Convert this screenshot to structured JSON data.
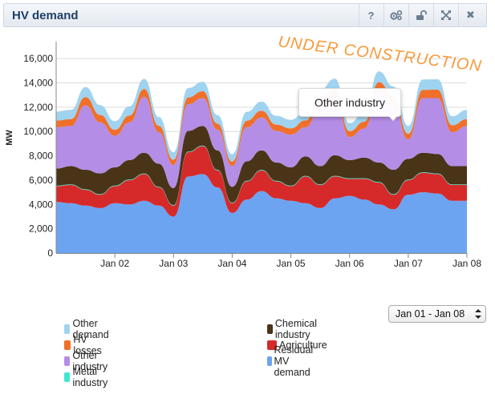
{
  "panel": {
    "title": "HV demand",
    "buttons": [
      {
        "id": "help",
        "icon": "help-icon",
        "glyph": "?"
      },
      {
        "id": "settings",
        "icon": "gears-icon",
        "glyph": ""
      },
      {
        "id": "unlock",
        "icon": "unlock-icon",
        "glyph": ""
      },
      {
        "id": "expand",
        "icon": "expand-icon",
        "glyph": ""
      },
      {
        "id": "close",
        "icon": "close-icon",
        "glyph": "✖"
      }
    ]
  },
  "watermark": "UNDER CONSTRUCTION",
  "tooltip": "Other industry",
  "date_range": {
    "selected": "Jan 01 - Jan 08"
  },
  "colors": {
    "residual_mv": "#6ca4f2",
    "agriculture": "#d62a2a",
    "chemical": "#4a3418",
    "other_industry": "#b48ee6",
    "hv_losses": "#f0702a",
    "other_demand": "#9fd3ef",
    "metal": "#3fe7cf",
    "watermark": "#f79a3c"
  },
  "legend": {
    "items": [
      {
        "label": "Other demand",
        "color": "#9fd3ef"
      },
      {
        "label": "Chemical industry",
        "color": "#4a3418"
      },
      {
        "label": "HV losses",
        "color": "#f0702a"
      },
      {
        "label": "Agriculture",
        "color": "#d62a2a"
      },
      {
        "label": "Other industry",
        "color": "#b48ee6"
      },
      {
        "label": "Residual MV demand",
        "color": "#6ca4f2"
      },
      {
        "label": "Metal industry",
        "color": "#3fe7cf"
      }
    ]
  },
  "chart_data": {
    "type": "area",
    "stacked": true,
    "ylabel": "MW",
    "ylim": [
      0,
      17000
    ],
    "yticks": [
      "0",
      "2,000",
      "4,000",
      "6,000",
      "8,000",
      "10,000",
      "12,000",
      "14,000",
      "16,000"
    ],
    "ytick_values": [
      0,
      2000,
      4000,
      6000,
      8000,
      10000,
      12000,
      14000,
      16000
    ],
    "xticks": [
      "Jan 02",
      "Jan 03",
      "Jan 04",
      "Jan 05",
      "Jan 06",
      "Jan 07",
      "Jan 08"
    ],
    "x_days": [
      0,
      0.25,
      0.5,
      0.75,
      1,
      1.25,
      1.5,
      1.75,
      2,
      2.25,
      2.5,
      2.75,
      3,
      3.25,
      3.5,
      3.75,
      4,
      4.25,
      4.5,
      4.75,
      5,
      5.25,
      5.5,
      5.75,
      6,
      6.25,
      6.5,
      6.75,
      7
    ],
    "series": [
      {
        "name": "Residual MV demand",
        "values": [
          4200,
          4100,
          3900,
          3700,
          4100,
          4000,
          4300,
          3900,
          3000,
          6300,
          6500,
          5400,
          3300,
          4400,
          5100,
          4500,
          4300,
          4100,
          3700,
          4500,
          4700,
          4400,
          4000,
          3600,
          4800,
          5000,
          4900,
          4300,
          4300
        ]
      },
      {
        "name": "Agriculture",
        "values": [
          1300,
          1500,
          1300,
          1100,
          1400,
          2000,
          2200,
          1500,
          900,
          2000,
          2300,
          1400,
          800,
          1500,
          1700,
          1400,
          1200,
          2200,
          1900,
          1800,
          1400,
          1700,
          1800,
          1200,
          1200,
          1600,
          1600,
          1300,
          1300
        ]
      },
      {
        "name": "Metal industry",
        "values": [
          50,
          50,
          50,
          50,
          50,
          50,
          50,
          50,
          50,
          50,
          50,
          50,
          50,
          50,
          50,
          50,
          50,
          50,
          50,
          50,
          50,
          50,
          50,
          50,
          50,
          50,
          50,
          50,
          50
        ]
      },
      {
        "name": "Chemical industry",
        "values": [
          1400,
          1500,
          1600,
          1700,
          1500,
          1600,
          1700,
          1900,
          1400,
          1700,
          1600,
          1600,
          1300,
          1600,
          1600,
          1500,
          1500,
          1600,
          1500,
          1700,
          1500,
          1700,
          1600,
          2000,
          1700,
          1600,
          1600,
          1500,
          1500
        ]
      },
      {
        "name": "Other industry",
        "values": [
          3400,
          3300,
          5300,
          4200,
          2600,
          3100,
          4600,
          2600,
          1900,
          2200,
          2300,
          1700,
          1700,
          2800,
          2700,
          2600,
          2700,
          2400,
          4800,
          4800,
          1900,
          2400,
          5900,
          5300,
          1600,
          4500,
          4600,
          2800,
          3300
        ]
      },
      {
        "name": "HV losses",
        "values": [
          550,
          570,
          680,
          620,
          500,
          570,
          650,
          520,
          420,
          560,
          570,
          500,
          380,
          540,
          560,
          520,
          510,
          560,
          660,
          660,
          480,
          560,
          720,
          690,
          460,
          680,
          690,
          560,
          570
        ]
      },
      {
        "name": "Other demand",
        "values": [
          750,
          760,
          830,
          800,
          700,
          760,
          830,
          720,
          620,
          760,
          770,
          700,
          600,
          730,
          750,
          720,
          700,
          760,
          840,
          840,
          650,
          760,
          880,
          850,
          650,
          850,
          860,
          750,
          760
        ]
      }
    ]
  }
}
